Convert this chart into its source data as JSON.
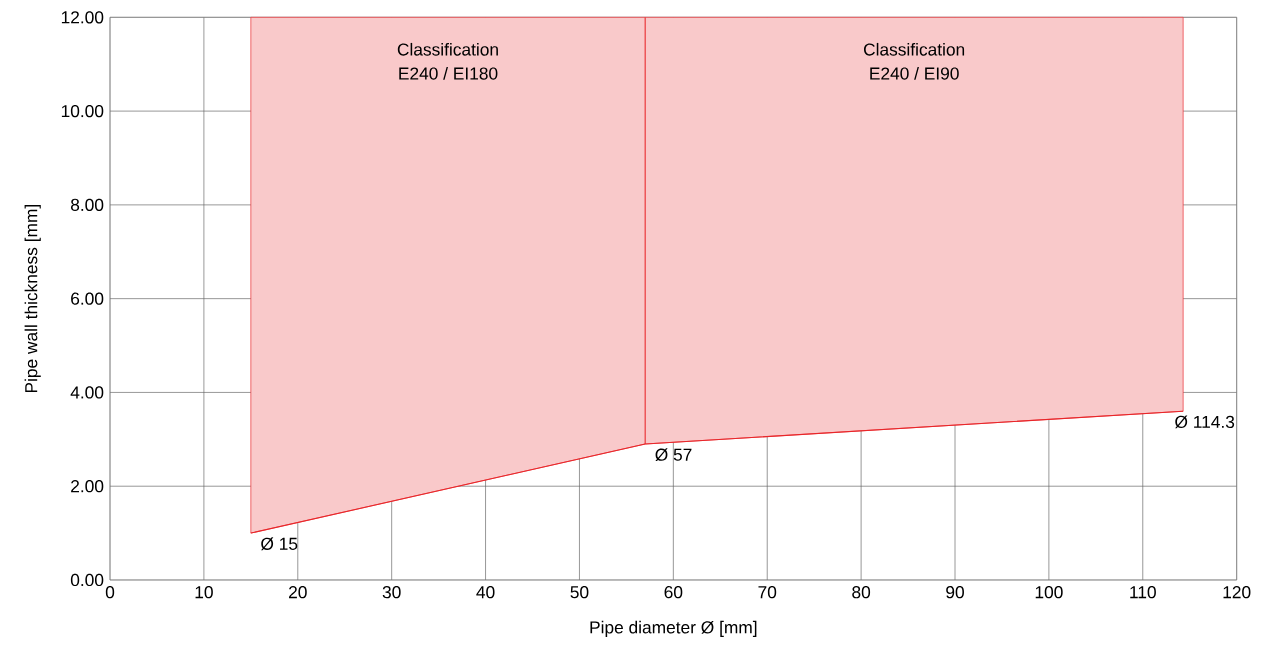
{
  "chart_data": {
    "type": "line",
    "xlabel": "Pipe diameter Ø [mm]",
    "ylabel": "Pipe wall thickness [mm]",
    "series": [
      {
        "x": [
          15,
          57,
          114.3
        ],
        "values": [
          1.0,
          2.9,
          3.6
        ],
        "lower": [
          1.0,
          2.9,
          3.6
        ],
        "upper": [
          12,
          12,
          12
        ],
        "color": "#e8262a"
      }
    ],
    "ref_lines": [
      {
        "axis": "x",
        "value": 57,
        "color": "#e8262a"
      }
    ],
    "xlim": [
      0,
      120
    ],
    "xticks": [
      0,
      10,
      20,
      30,
      40,
      50,
      60,
      70,
      80,
      90,
      100,
      110,
      120
    ],
    "ylim": [
      0,
      12
    ],
    "yticks": [
      {
        "value": 0,
        "label": "0.00"
      },
      {
        "value": 2,
        "label": "2.00"
      },
      {
        "value": 4,
        "label": "4.00"
      },
      {
        "value": 6,
        "label": "6.00"
      },
      {
        "value": 8,
        "label": "8.00"
      },
      {
        "value": 10,
        "label": "10.00"
      },
      {
        "value": 12,
        "label": "12.00"
      }
    ],
    "grid": true,
    "marker": "none",
    "line_style": "solid",
    "annotations": [
      "Classification",
      "E240 / EI180",
      "Classification",
      "E240 / EI90",
      {
        "text": "Ø 15",
        "x": 15,
        "y": 1.0
      },
      {
        "text": "Ø 57",
        "x": 57,
        "y": 2.9
      },
      {
        "text": "Ø 114.3",
        "x": 114.3,
        "y": 3.6
      }
    ]
  }
}
